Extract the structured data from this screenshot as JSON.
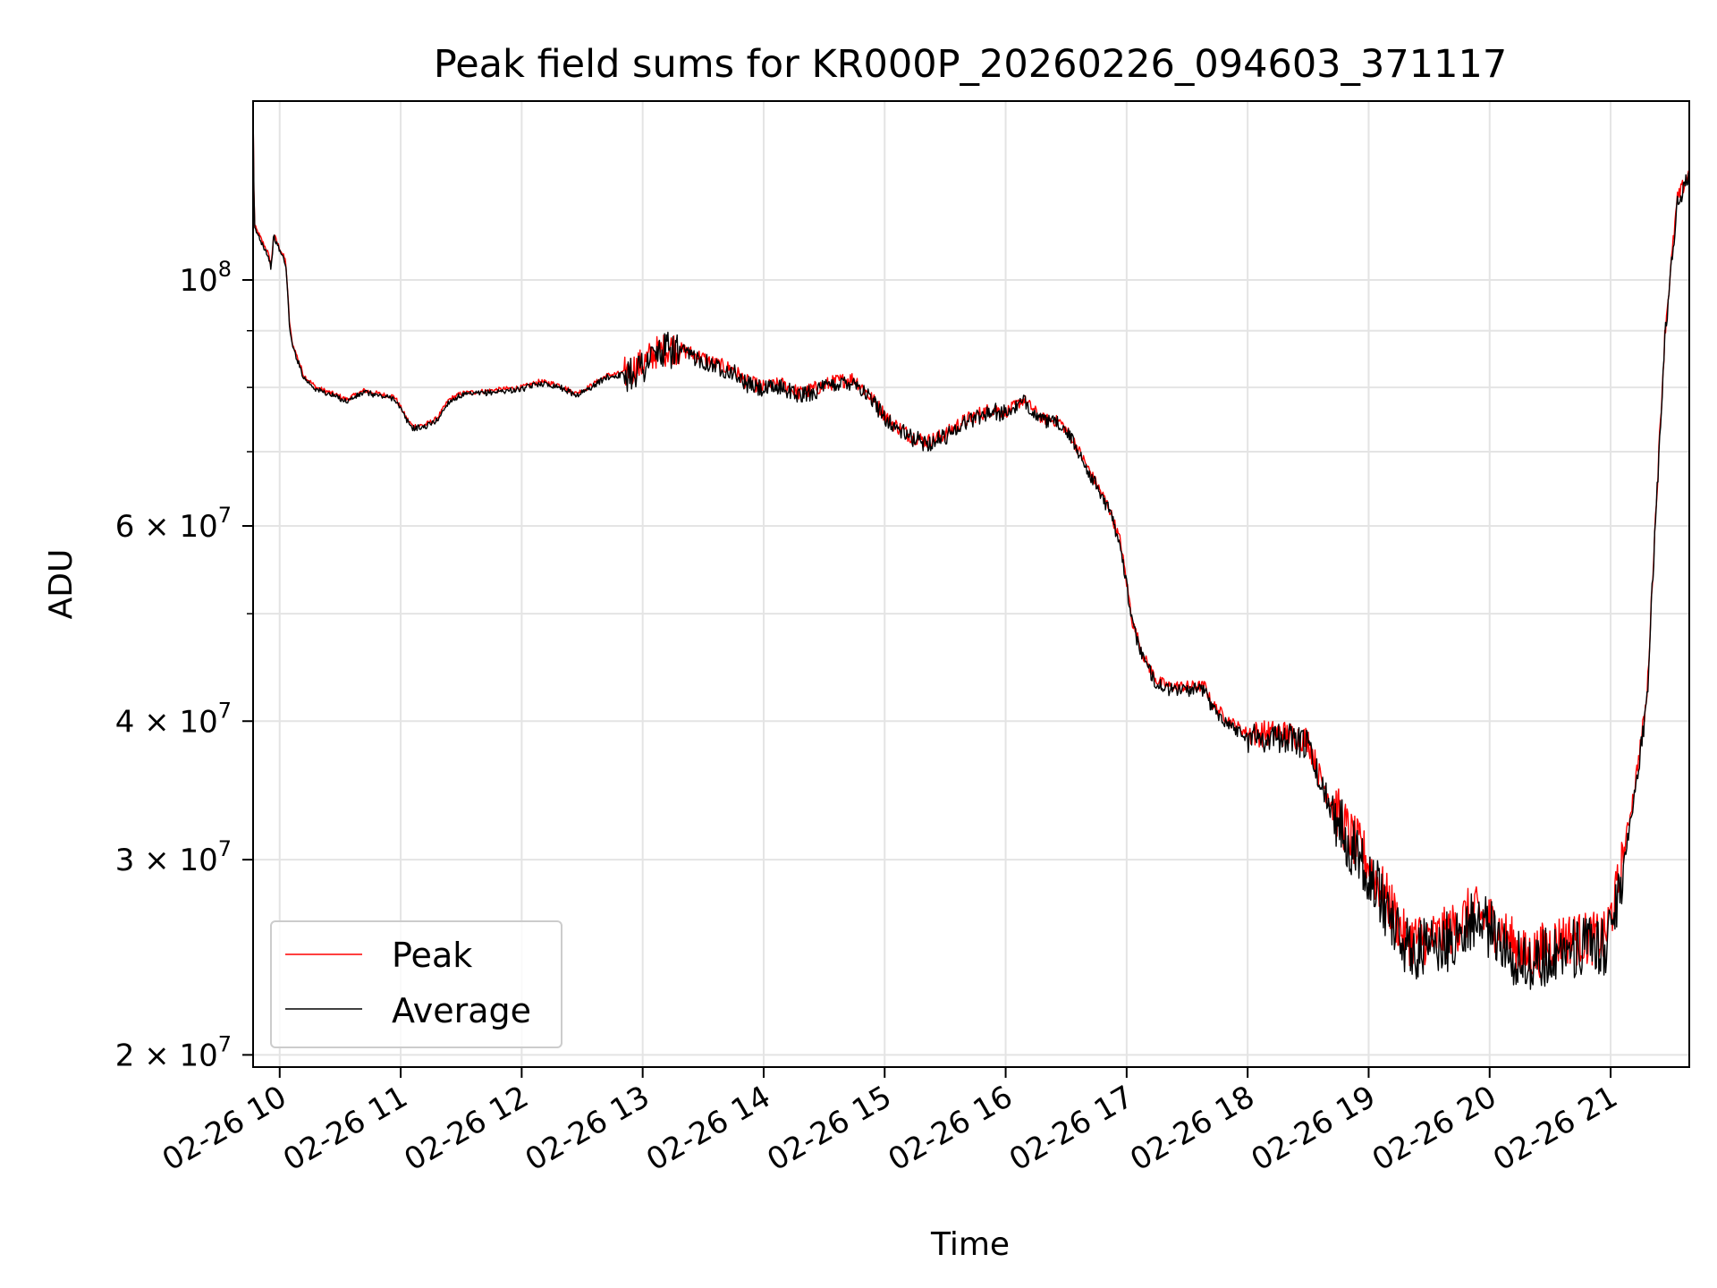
{
  "chart_data": {
    "type": "line",
    "title": "Peak field sums for KR000P_20260226_094603_371117",
    "xlabel": "Time",
    "ylabel": "ADU",
    "yscale": "log",
    "ylim": [
      19500000,
      145000000
    ],
    "xlim": [
      9.78,
      21.65
    ],
    "grid": true,
    "legend_position": "lower-left",
    "x_ticks": [
      {
        "value": 10,
        "label": "02-26 10"
      },
      {
        "value": 11,
        "label": "02-26 11"
      },
      {
        "value": 12,
        "label": "02-26 12"
      },
      {
        "value": 13,
        "label": "02-26 13"
      },
      {
        "value": 14,
        "label": "02-26 14"
      },
      {
        "value": 15,
        "label": "02-26 15"
      },
      {
        "value": 16,
        "label": "02-26 16"
      },
      {
        "value": 17,
        "label": "02-26 17"
      },
      {
        "value": 18,
        "label": "02-26 18"
      },
      {
        "value": 19,
        "label": "02-26 19"
      },
      {
        "value": 20,
        "label": "02-26 20"
      },
      {
        "value": 21,
        "label": "02-26 21"
      }
    ],
    "y_major_ticks": [
      {
        "value": 100000000,
        "base": "10",
        "exp": "8"
      },
      {
        "value": 60000000,
        "base": "6 × 10",
        "exp": "7"
      },
      {
        "value": 40000000,
        "base": "4 × 10",
        "exp": "7"
      },
      {
        "value": 30000000,
        "base": "3 × 10",
        "exp": "7"
      },
      {
        "value": 20000000,
        "base": "2 × 10",
        "exp": "7"
      }
    ],
    "y_minor_grid": [
      90000000,
      80000000,
      70000000,
      50000000
    ],
    "series": [
      {
        "name": "Peak",
        "color": "#ff0000",
        "noise": 0.035,
        "x": [
          9.78,
          9.79,
          9.9,
          9.93,
          9.95,
          9.98,
          10.05,
          10.08,
          10.1,
          10.2,
          10.3,
          10.5,
          10.55,
          10.7,
          10.85,
          10.95,
          11.05,
          11.1,
          11.2,
          11.3,
          11.4,
          11.5,
          11.7,
          11.85,
          12.0,
          12.15,
          12.3,
          12.45,
          12.55,
          12.7,
          12.85,
          13.0,
          13.1,
          13.25,
          13.45,
          13.6,
          13.75,
          13.85,
          14.0,
          14.15,
          14.3,
          14.45,
          14.6,
          14.75,
          14.9,
          15.05,
          15.2,
          15.35,
          15.5,
          15.6,
          15.75,
          15.9,
          16.0,
          16.15,
          16.3,
          16.45,
          16.55,
          16.7,
          16.85,
          16.95,
          17.05,
          17.15,
          17.25,
          17.35,
          17.5,
          17.65,
          17.7,
          17.85,
          18.0,
          18.15,
          18.3,
          18.5,
          18.6,
          18.75,
          18.85,
          18.95,
          19.05,
          19.2,
          19.3,
          19.45,
          19.55,
          19.7,
          19.85,
          20.0,
          20.15,
          20.3,
          20.45,
          20.6,
          20.8,
          20.95,
          21.05,
          21.1,
          21.2,
          21.3,
          21.35,
          21.45,
          21.55,
          21.65
        ],
        "y": [
          144000000,
          112000000,
          106000000,
          103000000,
          110000000,
          108000000,
          104000000,
          92000000,
          88000000,
          82000000,
          80000000,
          78500000,
          78000000,
          79500000,
          78800000,
          78500000,
          75000000,
          73800000,
          74000000,
          75000000,
          78000000,
          79000000,
          79400000,
          79700000,
          80000000,
          81000000,
          80500000,
          79000000,
          80000000,
          82000000,
          82500000,
          84000000,
          86000000,
          87000000,
          85500000,
          84000000,
          83000000,
          81000000,
          80000000,
          80500000,
          79000000,
          80000000,
          81000000,
          81500000,
          78000000,
          74500000,
          72500000,
          71500000,
          72500000,
          74000000,
          75500000,
          76500000,
          76000000,
          78000000,
          75000000,
          74500000,
          72000000,
          67000000,
          62500000,
          58000000,
          49000000,
          45500000,
          43500000,
          43000000,
          43000000,
          43000000,
          41500000,
          40000000,
          39000000,
          39000000,
          39000000,
          38500000,
          35500000,
          33000000,
          31500000,
          30500000,
          29000000,
          27000000,
          25500000,
          25500000,
          25500000,
          26000000,
          27000000,
          26500000,
          25500000,
          24500000,
          25000000,
          25500000,
          25500000,
          25500000,
          28000000,
          30000000,
          35000000,
          42000000,
          55000000,
          90000000,
          118000000,
          125000000
        ]
      },
      {
        "name": "Average",
        "color": "#000000",
        "noise": 0.04,
        "x": [
          9.78,
          9.79,
          9.9,
          9.93,
          9.95,
          9.98,
          10.05,
          10.08,
          10.1,
          10.2,
          10.3,
          10.5,
          10.55,
          10.7,
          10.85,
          10.95,
          11.05,
          11.1,
          11.2,
          11.3,
          11.4,
          11.5,
          11.7,
          11.85,
          12.0,
          12.15,
          12.3,
          12.45,
          12.55,
          12.7,
          12.85,
          13.0,
          13.1,
          13.25,
          13.45,
          13.6,
          13.75,
          13.85,
          14.0,
          14.15,
          14.3,
          14.45,
          14.6,
          14.75,
          14.9,
          15.05,
          15.2,
          15.35,
          15.5,
          15.6,
          15.75,
          15.9,
          16.0,
          16.15,
          16.3,
          16.45,
          16.55,
          16.7,
          16.85,
          16.95,
          17.05,
          17.15,
          17.25,
          17.35,
          17.5,
          17.65,
          17.7,
          17.85,
          18.0,
          18.15,
          18.3,
          18.5,
          18.6,
          18.75,
          18.85,
          18.95,
          19.05,
          19.2,
          19.3,
          19.45,
          19.55,
          19.7,
          19.85,
          20.0,
          20.15,
          20.3,
          20.45,
          20.6,
          20.8,
          20.95,
          21.05,
          21.1,
          21.2,
          21.3,
          21.35,
          21.45,
          21.55,
          21.65
        ],
        "y": [
          143000000,
          111500000,
          105500000,
          102500000,
          109500000,
          107500000,
          103500000,
          91500000,
          87500000,
          81600000,
          79700000,
          78200000,
          77700000,
          79200000,
          78500000,
          78200000,
          74700000,
          73500000,
          73700000,
          74700000,
          77700000,
          78700000,
          79100000,
          79400000,
          79700000,
          80700000,
          80200000,
          78700000,
          79700000,
          81700000,
          82200000,
          83600000,
          85600000,
          86600000,
          85100000,
          83600000,
          82600000,
          80600000,
          79600000,
          80100000,
          78600000,
          79600000,
          80600000,
          81100000,
          77700000,
          74200000,
          72200000,
          71200000,
          72200000,
          73700000,
          75200000,
          76200000,
          75700000,
          77700000,
          74700000,
          74200000,
          71700000,
          66700000,
          62200000,
          57700000,
          48700000,
          45200000,
          43200000,
          42700000,
          42700000,
          42700000,
          41200000,
          39700000,
          38700000,
          38700000,
          38700000,
          38100000,
          35100000,
          32600000,
          31100000,
          30100000,
          28500000,
          26500000,
          25000000,
          25000000,
          25000000,
          25500000,
          26500000,
          26000000,
          25000000,
          24000000,
          24500000,
          25000000,
          25000000,
          25000000,
          27500000,
          29500000,
          34500000,
          41500000,
          54500000,
          89000000,
          117000000,
          124000000
        ]
      }
    ]
  }
}
